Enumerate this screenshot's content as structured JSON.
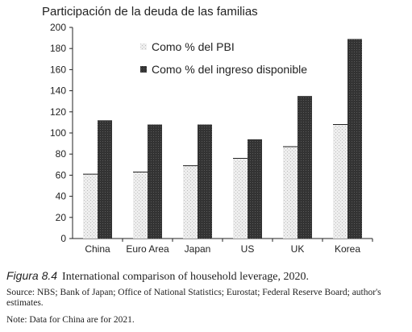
{
  "chart_data": {
    "type": "bar",
    "title": "Participación de la deuda de las familias",
    "categories": [
      "China",
      "Euro Area",
      "Japan",
      "US",
      "UK",
      "Korea"
    ],
    "series": [
      {
        "name": "Como % del PBI",
        "values": [
          61,
          63,
          69,
          76,
          87,
          108
        ],
        "color": "#e2e2e2",
        "pattern": "light-stipple"
      },
      {
        "name": "Como % del ingreso disponible",
        "values": [
          112,
          108,
          108,
          94,
          135,
          189
        ],
        "color": "#3a3a3a",
        "pattern": "dark-stipple"
      }
    ],
    "ylim": [
      0,
      200
    ],
    "yticks": [
      0,
      20,
      40,
      60,
      80,
      100,
      120,
      140,
      160,
      180,
      200
    ],
    "xlabel": "",
    "ylabel": "",
    "grid": false,
    "legend_position": "top-center"
  },
  "caption": {
    "label": "Figura 8.4",
    "text": "International comparison of household leverage, 2020."
  },
  "source": "Source: NBS; Bank of Japan; Office of National Statistics; Eurostat; Federal Reserve Board; author's estimates.",
  "note": "Note: Data for China are for 2021."
}
